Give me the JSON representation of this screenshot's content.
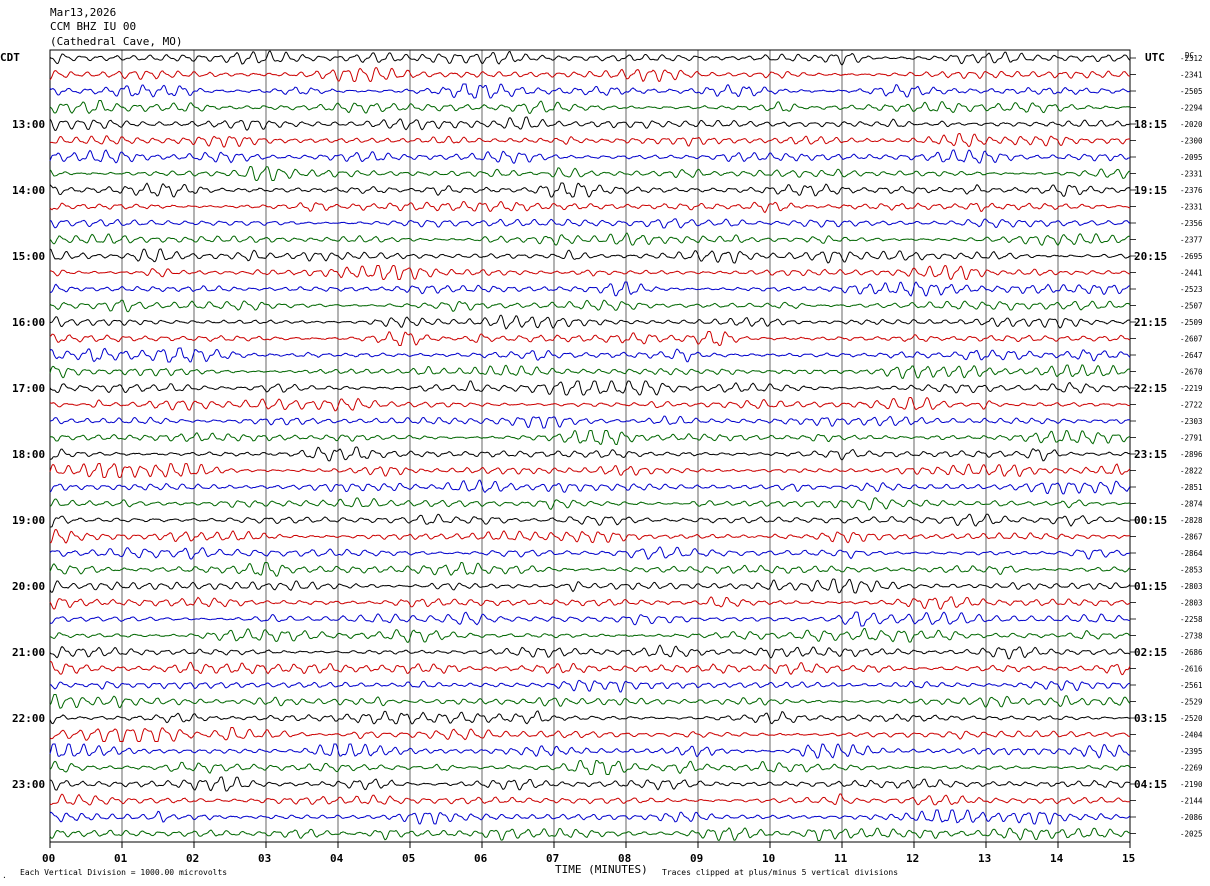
{
  "header": {
    "date": "Mar13,2026",
    "station": "CCM BHZ IU 00",
    "location": "(Cathedral Cave, MO)"
  },
  "left_tz": "CDT",
  "right_tz": "UTC",
  "dc_label": "DC",
  "footer": {
    "scale_note": "Each Vertical Division = 1000.00 microvolts",
    "xlabel": "TIME (MINUTES)",
    "clip_note": "Traces clipped at plus/minus 5 vertical divisions"
  },
  "trace_colors": [
    "#000000",
    "#cc0000",
    "#0000cc",
    "#006600"
  ],
  "chart_data": {
    "type": "line",
    "title": "CCM BHZ IU 00 (Cathedral Cave, MO) Mar13,2026",
    "xlabel": "TIME (MINUTES)",
    "xlim": [
      0,
      15
    ],
    "x_ticks": [
      "00",
      "01",
      "02",
      "03",
      "04",
      "05",
      "06",
      "07",
      "08",
      "09",
      "10",
      "11",
      "12",
      "13",
      "14",
      "15"
    ],
    "left_hour_labels": [
      {
        "row": 4,
        "label": "13:00"
      },
      {
        "row": 8,
        "label": "14:00"
      },
      {
        "row": 12,
        "label": "15:00"
      },
      {
        "row": 16,
        "label": "16:00"
      },
      {
        "row": 20,
        "label": "17:00"
      },
      {
        "row": 24,
        "label": "18:00"
      },
      {
        "row": 28,
        "label": "19:00"
      },
      {
        "row": 32,
        "label": "20:00"
      },
      {
        "row": 36,
        "label": "21:00"
      },
      {
        "row": 40,
        "label": "22:00"
      },
      {
        "row": 44,
        "label": "23:00"
      }
    ],
    "right_hour_labels": [
      {
        "row": 4,
        "label": "18:15"
      },
      {
        "row": 8,
        "label": "19:15"
      },
      {
        "row": 12,
        "label": "20:15"
      },
      {
        "row": 16,
        "label": "21:15"
      },
      {
        "row": 20,
        "label": "22:15"
      },
      {
        "row": 24,
        "label": "23:15"
      },
      {
        "row": 28,
        "label": "00:15"
      },
      {
        "row": 32,
        "label": "01:15"
      },
      {
        "row": 36,
        "label": "02:15"
      },
      {
        "row": 40,
        "label": "03:15"
      },
      {
        "row": 44,
        "label": "04:15"
      }
    ],
    "dc_offsets": [
      "-2312",
      "-2341",
      "-2505",
      "-2294",
      "-2020",
      "-2300",
      "-2095",
      "-2331",
      "-2376",
      "-2331",
      "-2356",
      "-2377",
      "-2695",
      "-2441",
      "-2523",
      "-2507",
      "-2509",
      "-2607",
      "-2647",
      "-2670",
      "-2219",
      "-2722",
      "-2303",
      "-2791",
      "-2896",
      "-2822",
      "-2851",
      "-2874",
      "-2828",
      "-2867",
      "-2864",
      "-2853",
      "-2803",
      "-2803",
      "-2258",
      "-2738",
      "-2686",
      "-2616",
      "-2561",
      "-2529",
      "-2520",
      "-2404",
      "-2395",
      "-2269",
      "-2190",
      "-2144",
      "-2086",
      "-2025"
    ],
    "trace_count": 48,
    "units_per_division_microvolts": 1000.0,
    "clip_divisions": 5
  }
}
